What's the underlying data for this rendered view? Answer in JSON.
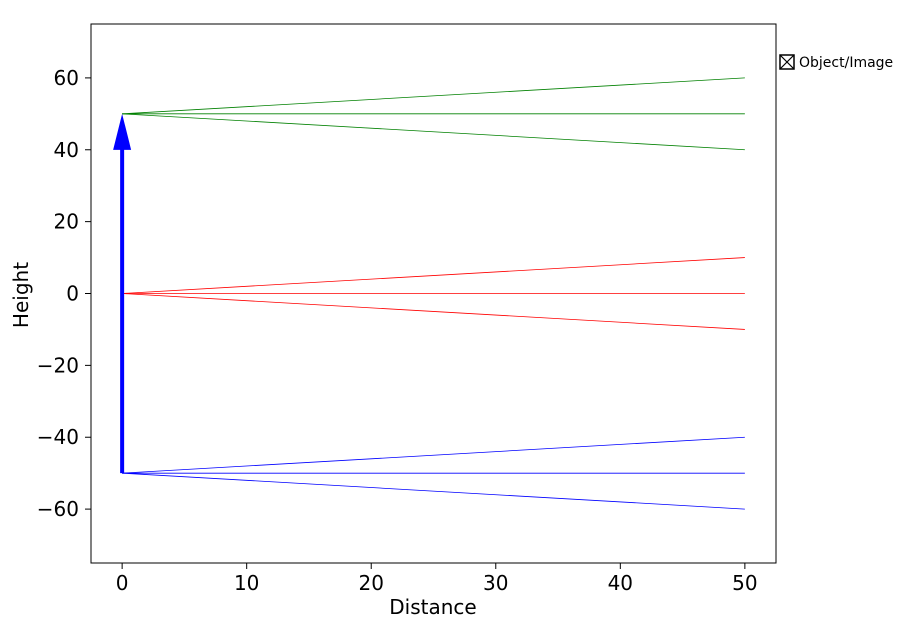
{
  "chart_data": {
    "type": "line",
    "title": "",
    "xlabel": "Distance",
    "ylabel": "Height",
    "xlim": [
      -2.5,
      52.5
    ],
    "ylim": [
      -75,
      75
    ],
    "xticks": [
      0,
      10,
      20,
      30,
      40,
      50
    ],
    "yticks": [
      -60,
      -40,
      -20,
      0,
      20,
      40,
      60
    ],
    "grid": false,
    "legend": {
      "placement": "outside-top-right",
      "entries": [
        "Object/Image"
      ]
    },
    "object_arrow": {
      "x": 0,
      "y_start": -50,
      "y_end": 50,
      "color": "#0000ff"
    },
    "series": [
      {
        "color": "#008000",
        "points": [
          [
            0,
            50
          ],
          [
            50,
            60
          ]
        ]
      },
      {
        "color": "#008000",
        "points": [
          [
            0,
            50
          ],
          [
            50,
            50
          ]
        ]
      },
      {
        "color": "#008000",
        "points": [
          [
            0,
            50
          ],
          [
            50,
            40
          ]
        ]
      },
      {
        "color": "#ff0000",
        "points": [
          [
            0,
            0
          ],
          [
            50,
            10
          ]
        ]
      },
      {
        "color": "#ff0000",
        "points": [
          [
            0,
            0
          ],
          [
            50,
            0
          ]
        ]
      },
      {
        "color": "#ff0000",
        "points": [
          [
            0,
            0
          ],
          [
            50,
            -10
          ]
        ]
      },
      {
        "color": "#0000ff",
        "points": [
          [
            0,
            -50
          ],
          [
            50,
            -40
          ]
        ]
      },
      {
        "color": "#0000ff",
        "points": [
          [
            0,
            -50
          ],
          [
            50,
            -50
          ]
        ]
      },
      {
        "color": "#0000ff",
        "points": [
          [
            0,
            -50
          ],
          [
            50,
            -60
          ]
        ]
      }
    ]
  }
}
